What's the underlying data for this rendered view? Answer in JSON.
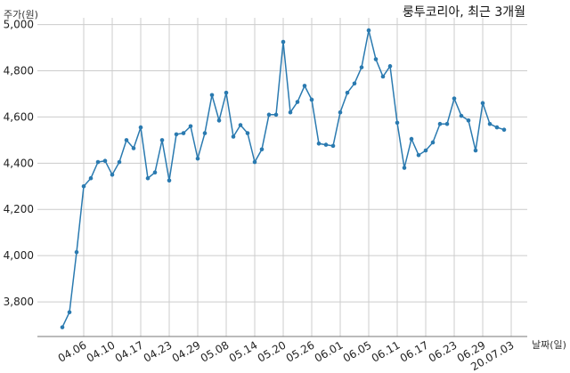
{
  "chart_data": {
    "type": "line",
    "title": "룽투코리아, 최근 3개월",
    "ylabel": "주가(원)",
    "xlabel": "날짜(일)",
    "ylim": [
      3650,
      5010
    ],
    "grid": true,
    "y_ticks": [
      3800,
      4000,
      4200,
      4400,
      4600,
      4800,
      5000
    ],
    "y_tick_labels": [
      "3,800",
      "4,000",
      "4,200",
      "4,400",
      "4,600",
      "4,800",
      "5,000"
    ],
    "x_tick_labels": [
      "04.06",
      "04.10",
      "04.17",
      "04.23",
      "04.29",
      "05.08",
      "05.14",
      "05.20",
      "05.26",
      "06.01",
      "06.05",
      "06.11",
      "06.17",
      "06.23",
      "06.29",
      "20.07.03"
    ],
    "x_tick_index": [
      3,
      7,
      11,
      15,
      19,
      23,
      27,
      31,
      35,
      39,
      43,
      47,
      51,
      55,
      59,
      63
    ],
    "series": [
      {
        "values": [
          3690,
          3755,
          4015,
          4300,
          4335,
          4405,
          4410,
          4350,
          4405,
          4500,
          4465,
          4555,
          4335,
          4360,
          4500,
          4325,
          4525,
          4530,
          4560,
          4420,
          4530,
          4695,
          4585,
          4705,
          4515,
          4565,
          4530,
          4405,
          4460,
          4610,
          4610,
          4925,
          4620,
          4665,
          4735,
          4675,
          4485,
          4480,
          4475,
          4620,
          4705,
          4745,
          4815,
          4975,
          4850,
          4775,
          4820,
          4575,
          4380,
          4505,
          4435,
          4455,
          4490,
          4570,
          4570,
          4680,
          4605,
          4585,
          4455,
          4660,
          4570,
          4555,
          4545
        ]
      }
    ]
  }
}
